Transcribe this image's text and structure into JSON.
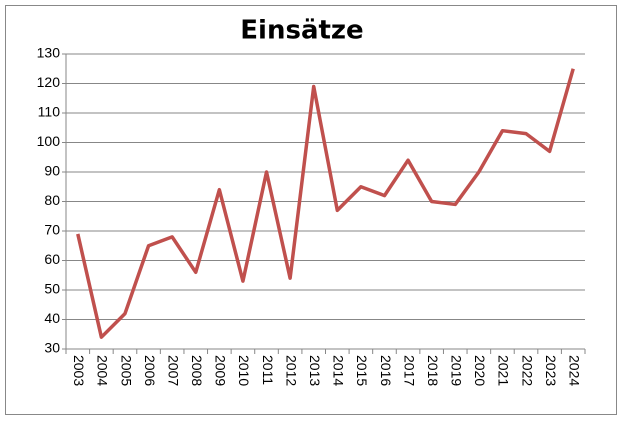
{
  "chart_data": {
    "type": "line",
    "title": "Einsätze",
    "categories": [
      "2003",
      "2004",
      "2005",
      "2006",
      "2007",
      "2008",
      "2009",
      "2010",
      "2011",
      "2012",
      "2013",
      "2014",
      "2015",
      "2016",
      "2017",
      "2018",
      "2019",
      "2020",
      "2021",
      "2022",
      "2023",
      "2024"
    ],
    "values": [
      69,
      34,
      42,
      65,
      68,
      56,
      84,
      53,
      90,
      54,
      119,
      77,
      85,
      82,
      94,
      80,
      79,
      90,
      104,
      103,
      97,
      125
    ],
    "color": "#c0504d",
    "ylim": [
      30,
      130
    ],
    "yticks": [
      30,
      40,
      50,
      60,
      70,
      80,
      90,
      100,
      110,
      120,
      130
    ],
    "grid": true
  }
}
